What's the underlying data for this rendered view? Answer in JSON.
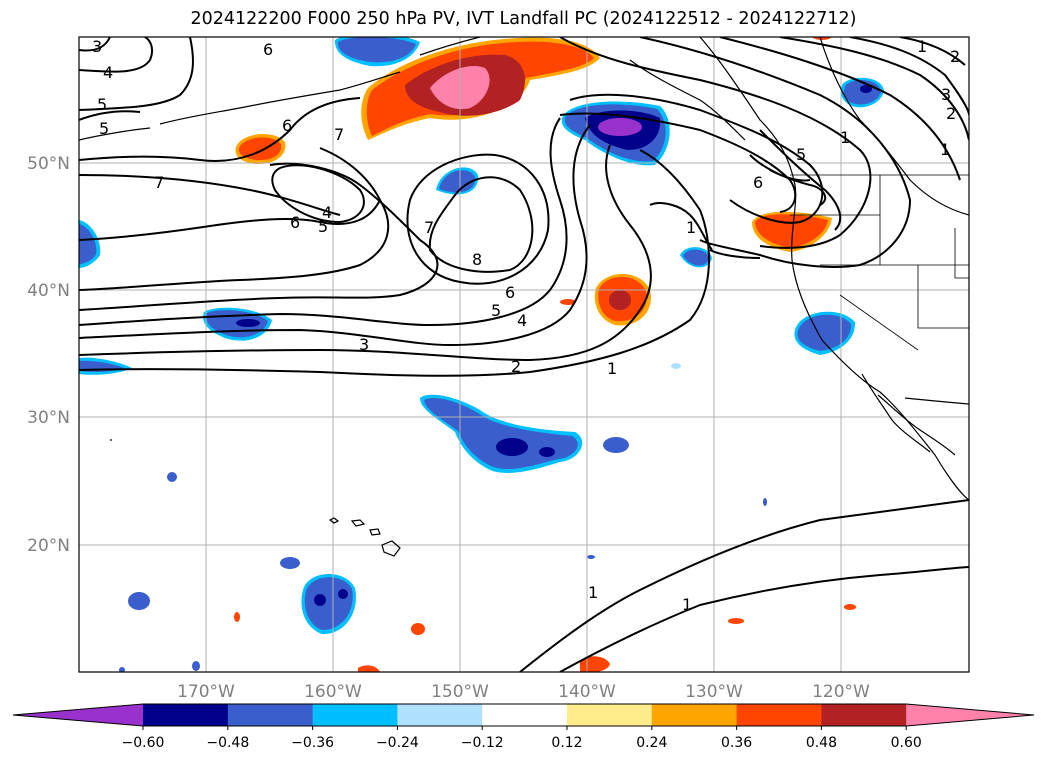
{
  "title": "2024122200 F000 250 hPa PV, IVT Landfall PC (2024122512 - 2024122712)",
  "map": {
    "lon_labels": [
      "170°W",
      "160°W",
      "150°W",
      "140°W",
      "130°W",
      "120°W"
    ],
    "lat_labels": [
      "50°N",
      "40°N",
      "30°N",
      "20°N"
    ],
    "contour_labels": [
      "3",
      "4",
      "5",
      "5",
      "6",
      "6",
      "7",
      "7",
      "6",
      "4",
      "5",
      "7",
      "8",
      "6",
      "5",
      "4",
      "3",
      "2",
      "1",
      "1",
      "5",
      "6",
      "1",
      "3",
      "2",
      "1",
      "1",
      "1",
      "1",
      "2"
    ]
  },
  "colorbar": {
    "colors": [
      "#9932CC",
      "#00008B",
      "#3A5FCD",
      "#00BFFF",
      "#B0E2FF",
      "#FFFFFF",
      "#FFEC8B",
      "#FFA500",
      "#FF4500",
      "#B22222",
      "#FF82AB"
    ],
    "tick_labels": [
      "−0.60",
      "−0.48",
      "−0.36",
      "−0.24",
      "−0.12",
      "0.12",
      "0.24",
      "0.36",
      "0.48",
      "0.60"
    ]
  },
  "colors": {
    "negative_core": "#00008B",
    "negative_mid": "#3A5FCD",
    "negative_edge": "#00BFFF",
    "positive_edge": "#FFA500",
    "positive_mid": "#FF4500",
    "positive_core": "#B22222",
    "positive_max": "#FF82AB",
    "contour": "#000000",
    "grid": "#b0b0b0"
  }
}
